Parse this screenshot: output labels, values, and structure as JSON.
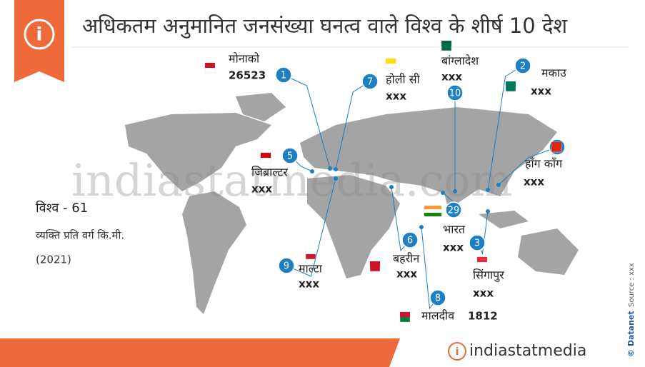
{
  "title": "अधिकतम अनुमानित जनसंख्या घनत्व वाले विश्व के शीर्ष 10 देश",
  "world": {
    "label": "विश्व - 61",
    "unit": "व्यक्ति प्रति वर्ग कि.मी.",
    "year": "(2021)"
  },
  "countries": [
    {
      "rank": 1,
      "name": "मोनाको",
      "value": 26523
    },
    {
      "rank": 2,
      "name": "मकाउ",
      "value": "xxx"
    },
    {
      "rank": 3,
      "name": "सिंगापुर",
      "value": "xxx"
    },
    {
      "rank": 4,
      "name": "हाँग काँग",
      "value": "xxx"
    },
    {
      "rank": 5,
      "name": "जिब्राल्टर",
      "value": "xxx"
    },
    {
      "rank": 6,
      "name": "बहरीन",
      "value": "xxx"
    },
    {
      "rank": 7,
      "name": "होली सी",
      "value": "xxx"
    },
    {
      "rank": 8,
      "name": "मालदीव",
      "value": 1812
    },
    {
      "rank": 9,
      "name": "माल्टा",
      "value": "xxx"
    },
    {
      "rank": 10,
      "name": "बांग्लादेश",
      "value": "xxx"
    }
  ],
  "india": {
    "rank": 29,
    "name": "भारत",
    "value": "xxx"
  },
  "watermark": "indiastatmedia.com",
  "source": "Source : xxx",
  "credit": "© Datanet",
  "brand": "indiastatmedia"
}
